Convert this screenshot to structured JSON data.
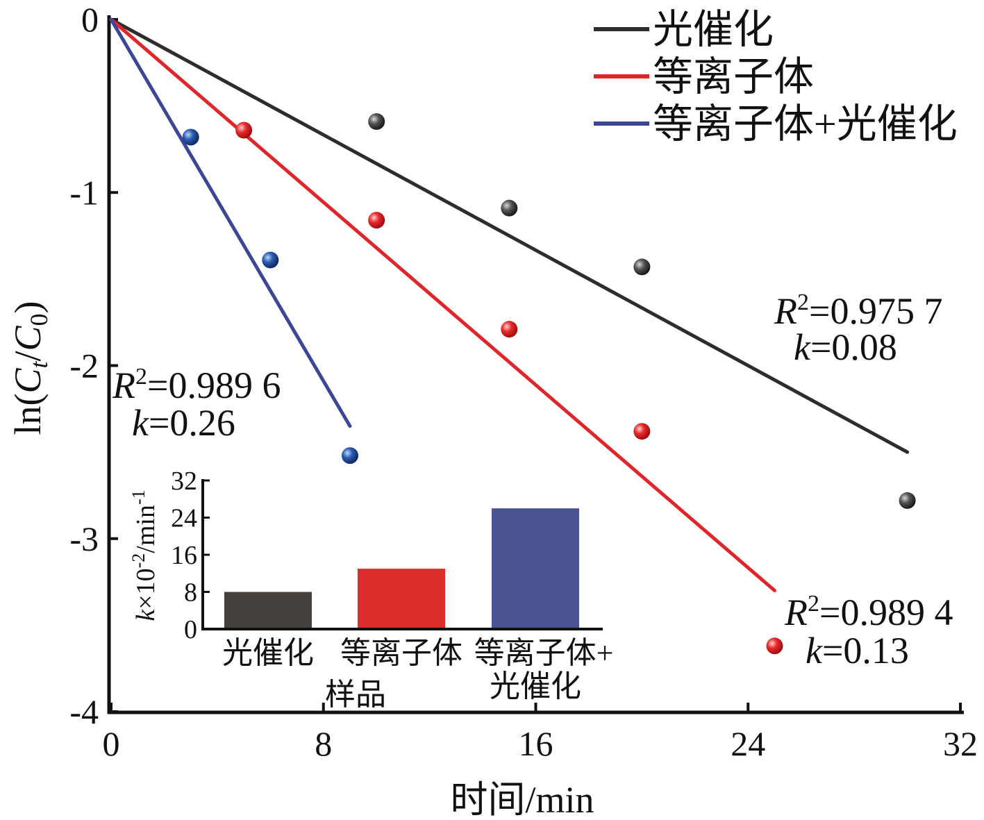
{
  "chart_data": {
    "type": "scatter",
    "xlabel": "时间/min",
    "ylabel_parts": [
      "ln(",
      "C",
      "t",
      "/",
      "C",
      "0",
      ")"
    ],
    "xlim": [
      0,
      32
    ],
    "ylim": [
      -4,
      0
    ],
    "x_ticks": [
      0,
      8,
      16,
      24,
      32
    ],
    "x_tick_labels": [
      "0",
      "8",
      "16",
      "24",
      "32"
    ],
    "y_ticks": [
      0,
      -1,
      -2,
      -3,
      -4
    ],
    "y_tick_labels": [
      "0",
      "-1",
      "-2",
      "-3",
      "-4"
    ],
    "series": [
      {
        "name": "光催化",
        "color": "#2d2d2d",
        "marker_color": "#3a3a3a",
        "points": [
          [
            10,
            -0.59
          ],
          [
            15,
            -1.09
          ],
          [
            20,
            -1.43
          ],
          [
            30,
            -2.78
          ]
        ],
        "fit_line": [
          [
            0,
            0
          ],
          [
            30,
            -2.5
          ]
        ],
        "r2_label": "R",
        "r2_sup": "2",
        "r2_value": "=0.975 7",
        "k_label": "k",
        "k_value": "=0.08"
      },
      {
        "name": "等离子体",
        "color": "#e0262b",
        "marker_color": "#e0262b",
        "points": [
          [
            5,
            -0.64
          ],
          [
            10,
            -1.16
          ],
          [
            15,
            -1.79
          ],
          [
            20,
            -2.38
          ],
          [
            25,
            -3.62
          ]
        ],
        "fit_line": [
          [
            0,
            0
          ],
          [
            25,
            -3.3
          ]
        ],
        "r2_label": "R",
        "r2_sup": "2",
        "r2_value": "=0.989 4",
        "k_label": "k",
        "k_value": "=0.13"
      },
      {
        "name": "等离子体+光催化",
        "color": "#3b4696",
        "marker_color": "#2451a0",
        "points": [
          [
            3,
            -0.68
          ],
          [
            6,
            -1.39
          ],
          [
            9,
            -2.52
          ]
        ],
        "fit_line": [
          [
            0,
            0
          ],
          [
            9,
            -2.35
          ]
        ],
        "r2_label": "R",
        "r2_sup": "2",
        "r2_value": "=0.989 6",
        "k_label": "k",
        "k_value": "=0.26"
      }
    ],
    "inset": {
      "type": "bar",
      "xlabel": "样品",
      "ylabel_k": "k",
      "ylabel_rest": "×10",
      "ylabel_exp": "-2",
      "ylabel_unit": "/min",
      "ylabel_unit_exp": "-1",
      "ylim": [
        0,
        32
      ],
      "y_ticks": [
        0,
        8,
        16,
        24,
        32
      ],
      "y_tick_labels": [
        "0",
        "8",
        "16",
        "24",
        "32"
      ],
      "categories": [
        "光催化",
        "等离子体",
        "等离子体+光催化"
      ],
      "category_lines": [
        [
          "光催化"
        ],
        [
          "等离子体"
        ],
        [
          "等离子体+",
          "光催化"
        ]
      ],
      "values": [
        8,
        13,
        26
      ],
      "colors": [
        "#46403d",
        "#dd2c2c",
        "#4a5394"
      ]
    }
  }
}
